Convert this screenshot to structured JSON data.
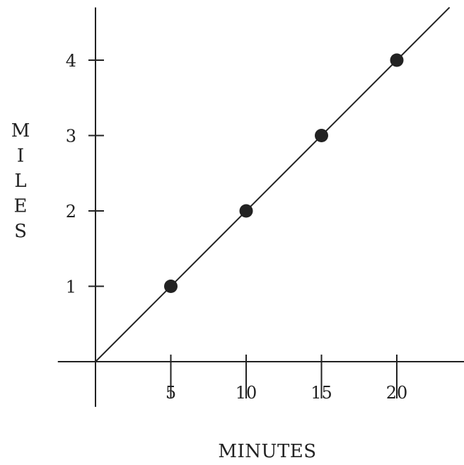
{
  "chart_data": {
    "type": "scatter",
    "title": "",
    "xlabel": "MINUTES",
    "ylabel": "MILES",
    "x_ticks": [
      5,
      10,
      15,
      20
    ],
    "y_ticks": [
      1,
      2,
      3,
      4
    ],
    "xlim": [
      -2.5,
      24.5
    ],
    "ylim": [
      -0.6,
      4.7
    ],
    "grid": false,
    "legend": "none",
    "series": [
      {
        "points": [
          {
            "x": 5,
            "y": 1
          },
          {
            "x": 10,
            "y": 2
          },
          {
            "x": 15,
            "y": 3
          },
          {
            "x": 20,
            "y": 4
          }
        ]
      }
    ],
    "trend_line": {
      "from": {
        "x": 0,
        "y": 0
      },
      "to": {
        "x": 23.5,
        "y": 4.7
      }
    },
    "colors": {
      "ink": "#222222"
    }
  }
}
